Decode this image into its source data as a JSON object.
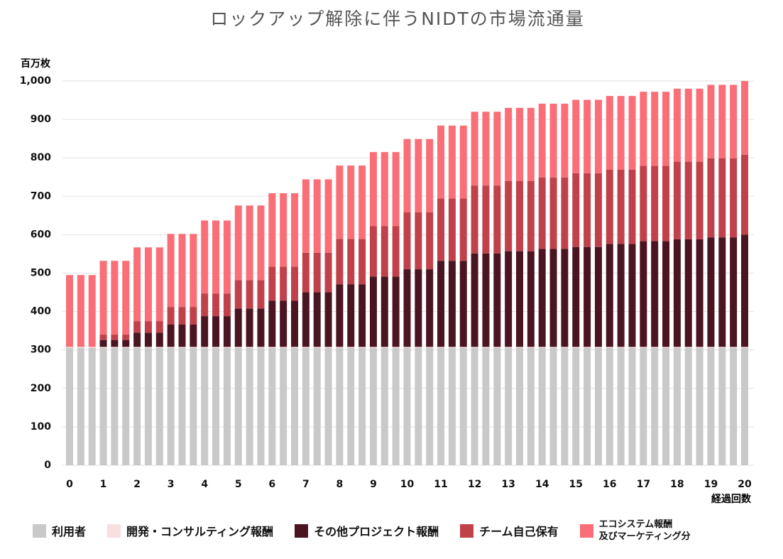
{
  "chart_data": {
    "type": "stacked_bar",
    "title": "ロックアップ解除に伴うNIDTの市場流通量",
    "y_label": "百万枚",
    "x_label": "経過回数",
    "categories": [
      "0",
      null,
      null,
      "1",
      null,
      null,
      "2",
      null,
      null,
      "3",
      null,
      null,
      "4",
      null,
      null,
      "5",
      null,
      null,
      "6",
      null,
      null,
      "7",
      null,
      null,
      "8",
      null,
      null,
      "9",
      null,
      null,
      "10",
      null,
      null,
      "11",
      null,
      null,
      "12",
      null,
      null,
      "13",
      null,
      null,
      "14",
      null,
      null,
      "15",
      null,
      null,
      "16",
      null,
      null,
      "17",
      null,
      null,
      "18",
      null,
      null,
      "19",
      null,
      null,
      "20"
    ],
    "ylim": [
      0,
      1000
    ],
    "yticks": [
      0,
      100,
      200,
      300,
      400,
      500,
      600,
      700,
      800,
      900,
      {
        "value": 1000,
        "label": "1,000"
      }
    ],
    "grid": true,
    "series": [
      {
        "name": "利用者",
        "color": "#c9c9c9",
        "values": [
          305,
          305,
          305,
          305,
          305,
          305,
          305,
          305,
          305,
          305,
          305,
          305,
          305,
          305,
          305,
          305,
          305,
          305,
          305,
          305,
          305,
          305,
          305,
          305,
          305,
          305,
          305,
          305,
          305,
          305,
          305,
          305,
          305,
          305,
          305,
          305,
          305,
          305,
          305,
          305,
          305,
          305,
          305,
          305,
          305,
          305,
          305,
          305,
          305,
          305,
          305,
          305,
          305,
          305,
          305,
          305,
          305,
          305,
          305,
          305,
          305
        ]
      },
      {
        "name": "開発・コンサルティング報酬",
        "color": "#f8dfe0",
        "values": [
          3,
          3,
          3,
          3,
          3,
          3,
          3,
          3,
          3,
          3,
          3,
          3,
          3,
          3,
          3,
          3,
          3,
          3,
          3,
          3,
          3,
          3,
          3,
          3,
          3,
          3,
          3,
          3,
          3,
          3,
          3,
          3,
          3,
          3,
          3,
          3,
          3,
          3,
          3,
          3,
          3,
          3,
          3,
          3,
          3,
          3,
          3,
          3,
          3,
          3,
          3,
          3,
          3,
          3,
          3,
          3,
          3,
          3,
          3,
          3,
          3
        ]
      },
      {
        "name": "その他プロジェクト報酬",
        "color": "#4a1520",
        "values": [
          0,
          0,
          0,
          18,
          18,
          18,
          37,
          37,
          37,
          58,
          58,
          58,
          80,
          80,
          80,
          100,
          100,
          100,
          120,
          120,
          120,
          142,
          142,
          142,
          163,
          163,
          163,
          183,
          183,
          183,
          202,
          202,
          202,
          224,
          224,
          224,
          243,
          243,
          243,
          249,
          249,
          249,
          255,
          255,
          255,
          260,
          260,
          260,
          268,
          268,
          268,
          275,
          275,
          275,
          280,
          280,
          280,
          285,
          285,
          285,
          292
        ]
      },
      {
        "name": "チーム自己保有",
        "color": "#c0414a",
        "values": [
          0,
          0,
          0,
          14,
          14,
          14,
          30,
          30,
          30,
          46,
          46,
          46,
          59,
          59,
          59,
          74,
          74,
          74,
          89,
          89,
          89,
          103,
          103,
          103,
          118,
          118,
          118,
          131,
          131,
          131,
          148,
          148,
          148,
          162,
          162,
          162,
          177,
          177,
          177,
          183,
          183,
          183,
          186,
          186,
          186,
          192,
          192,
          192,
          193,
          193,
          193,
          196,
          196,
          196,
          202,
          202,
          202,
          206,
          206,
          206,
          208
        ]
      },
      {
        "name": "エコシステム報酬\n及びマーケティング分",
        "color": "#fa6f77",
        "values": [
          187,
          187,
          187,
          192,
          192,
          192,
          192,
          192,
          192,
          190,
          190,
          190,
          190,
          190,
          190,
          194,
          194,
          194,
          191,
          191,
          191,
          191,
          191,
          191,
          191,
          191,
          191,
          193,
          193,
          193,
          191,
          191,
          191,
          190,
          190,
          190,
          192,
          192,
          192,
          190,
          190,
          190,
          192,
          192,
          192,
          191,
          191,
          191,
          192,
          192,
          192,
          193,
          193,
          193,
          190,
          190,
          190,
          191,
          191,
          191,
          192
        ]
      }
    ]
  }
}
